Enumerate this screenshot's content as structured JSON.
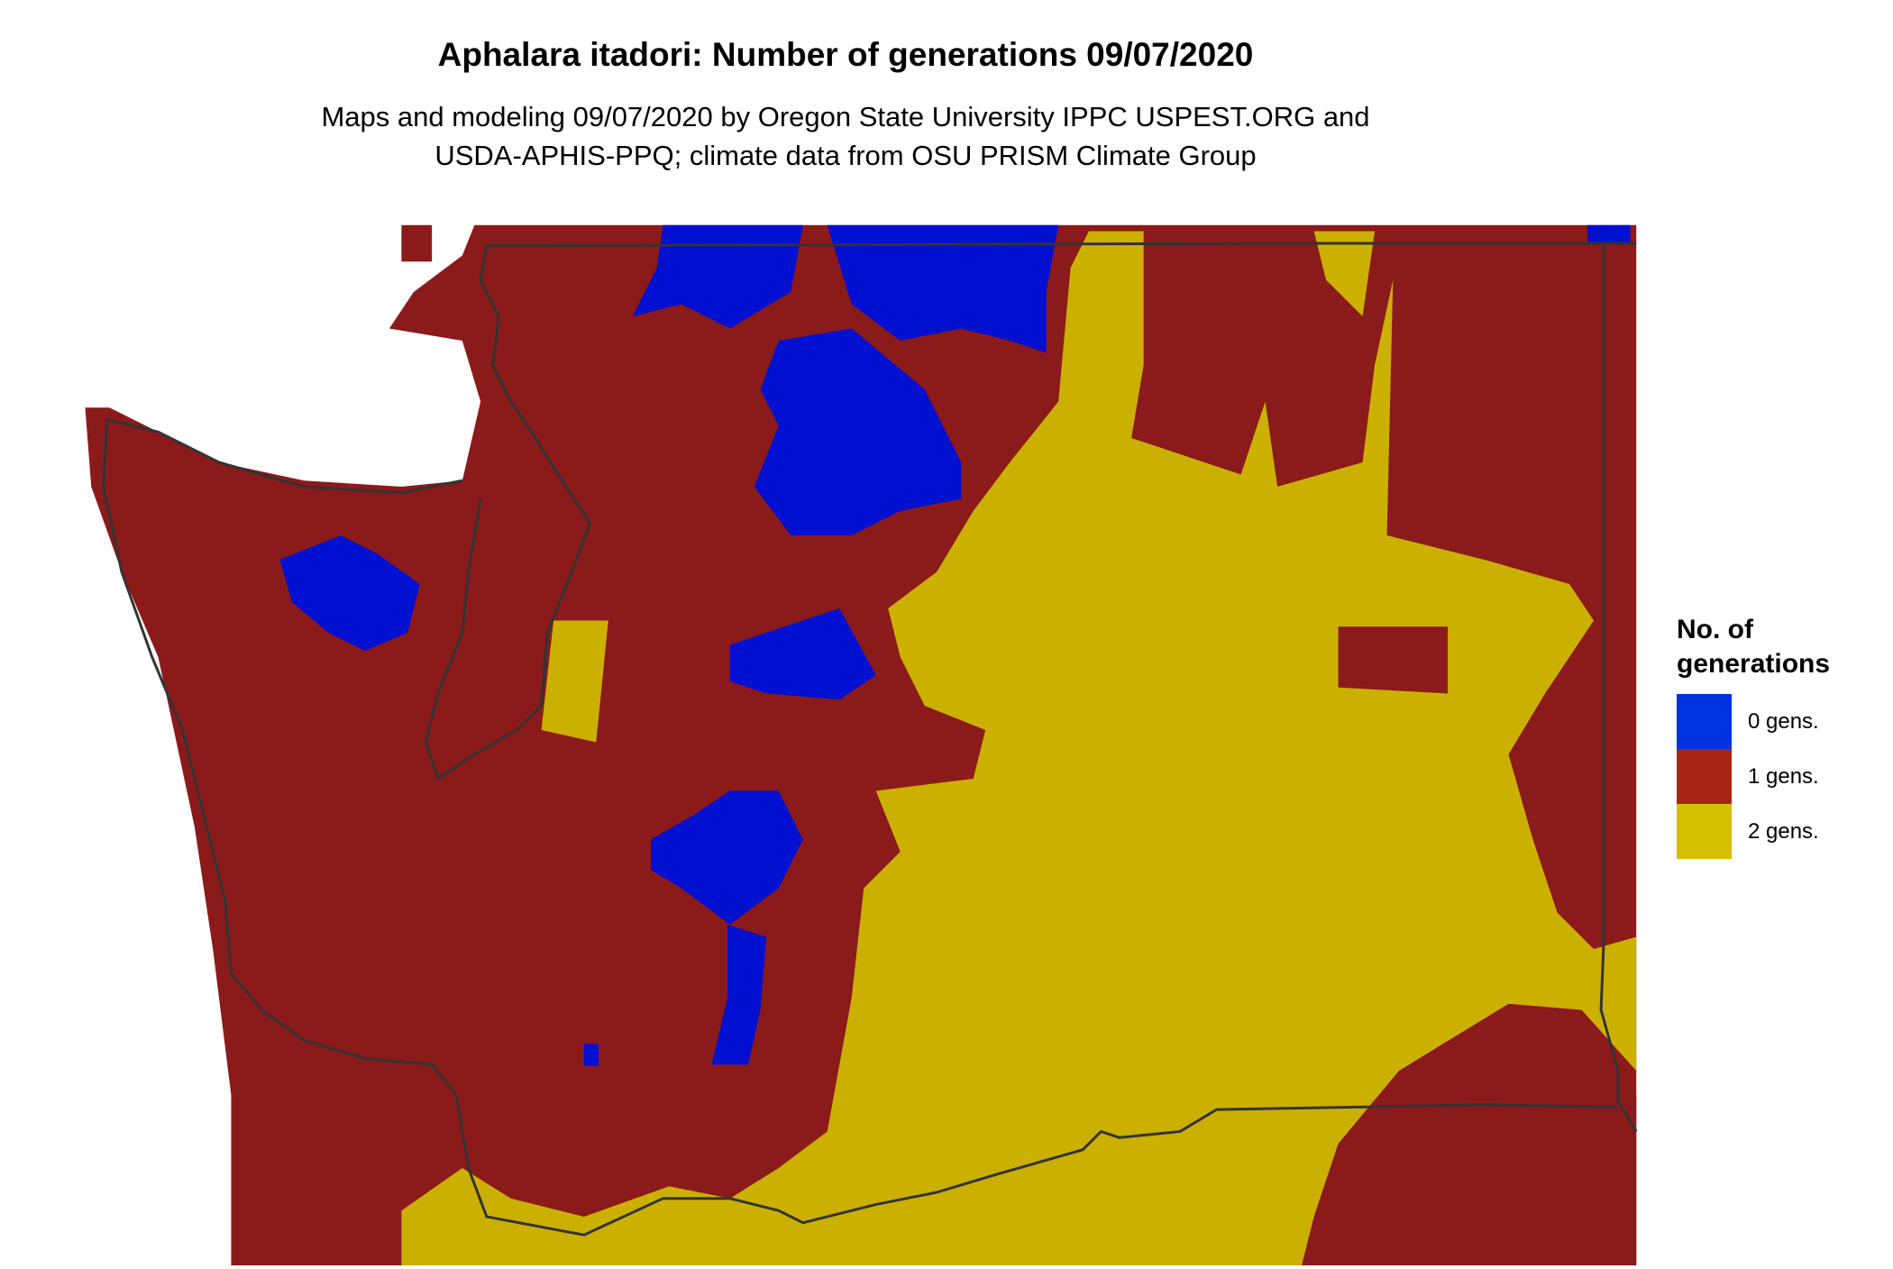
{
  "title": "Aphalara itadori: Number of generations 09/07/2020",
  "subtitle_lines": [
    "Maps and modeling 09/07/2020 by Oregon State University IPPC USPEST.ORG and",
    "USDA-APHIS-PPQ; climate data from OSU PRISM Climate Group"
  ],
  "legend": {
    "title_lines": [
      "No. of",
      "generations"
    ],
    "items": [
      {
        "label": "0 gens.",
        "color": "#0033DD"
      },
      {
        "label": "1 gens.",
        "color": "#A52515"
      },
      {
        "label": "2 gens.",
        "color": "#D4BF00"
      }
    ]
  },
  "map_colors": {
    "zero_gens": "#0010D0",
    "one_gen": "#8B1A1A",
    "two_gens": "#CCB000",
    "border": "#333333"
  }
}
